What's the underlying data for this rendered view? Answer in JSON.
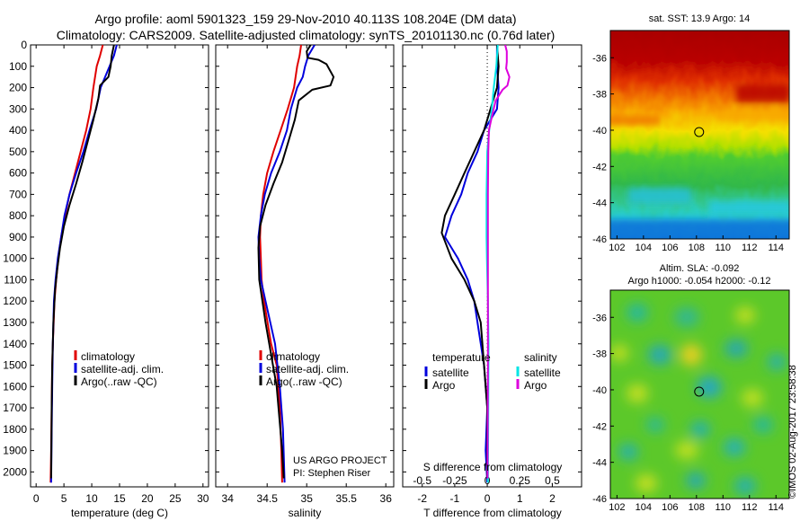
{
  "header": {
    "title_line1": "Argo profile: aoml 5901323_159 29-Nov-2010 40.113S 108.204E (DM data)",
    "title_line2": "Climatology: CARS2009. Satellite-adjusted climatology: synTS_20101130.nc (0.76d later)"
  },
  "credits": {
    "project": "US ARGO PROJECT",
    "pi": "PI: Stephen Riser"
  },
  "timestamp": "©IMOS 02-Aug-2017 23:58:38",
  "colors": {
    "climatology": "#e00000",
    "satellite": "#0000dd",
    "argo": "#000000",
    "sat_salinity": "#00e5e5",
    "argo_salinity": "#dd00dd"
  },
  "chart_data": [
    {
      "id": "temperature",
      "type": "line",
      "xlabel": "temperature (deg C)",
      "xlim": [
        -1,
        31
      ],
      "ylim": [
        2070,
        0
      ],
      "xticks": [
        0,
        5,
        10,
        15,
        20,
        25,
        30
      ],
      "xtick_labels": [
        "0",
        "5",
        "10",
        "15",
        "20",
        "25",
        "30"
      ],
      "yticks": [
        0,
        100,
        200,
        300,
        400,
        500,
        600,
        700,
        800,
        900,
        1000,
        1100,
        1200,
        1300,
        1400,
        1500,
        1600,
        1700,
        1800,
        1900,
        2000
      ],
      "ytick_labels": [
        "0",
        "100",
        "200",
        "300",
        "400",
        "500",
        "600",
        "700",
        "800",
        "900",
        "1000",
        "1100",
        "1200",
        "1300",
        "1400",
        "1500",
        "1600",
        "1700",
        "1800",
        "1900",
        "2000"
      ],
      "legend": {
        "position": "lower-center",
        "entries": [
          "climatology",
          "satellite-adj. clim.",
          "Argo(..raw -QC)"
        ]
      },
      "series": [
        {
          "name": "climatology",
          "color": "#e00000",
          "x": [
            12.0,
            11.5,
            10.9,
            10.3,
            9.8,
            9.0,
            8.0,
            7.0,
            6.0,
            5.2,
            4.5,
            4.0,
            3.6,
            3.3,
            3.0,
            2.9,
            2.8,
            2.7,
            2.6
          ],
          "y": [
            0,
            50,
            100,
            200,
            300,
            400,
            500,
            600,
            700,
            800,
            900,
            1000,
            1100,
            1200,
            1400,
            1500,
            1700,
            1900,
            2050
          ]
        },
        {
          "name": "satellite-adj. clim.",
          "color": "#0000dd",
          "x": [
            14.5,
            14.0,
            13.2,
            12.4,
            11.6,
            10.8,
            9.6,
            8.5,
            7.2,
            6.0,
            5.1,
            4.5,
            3.9,
            3.5,
            3.2,
            3.0,
            2.9,
            2.8,
            2.7
          ],
          "y": [
            0,
            50,
            100,
            150,
            200,
            300,
            400,
            500,
            600,
            700,
            800,
            900,
            1000,
            1100,
            1200,
            1400,
            1600,
            1800,
            2050
          ]
        },
        {
          "name": "Argo(..raw -QC)",
          "color": "#000000",
          "x": [
            14.0,
            13.6,
            13.4,
            13.0,
            11.5,
            11.2,
            10.3,
            9.3,
            8.3,
            7.2,
            6.0,
            5.0,
            4.3,
            3.8,
            3.4,
            3.1,
            2.9,
            2.8,
            2.7
          ],
          "y": [
            0,
            50,
            100,
            150,
            190,
            250,
            350,
            450,
            550,
            650,
            750,
            850,
            950,
            1050,
            1150,
            1300,
            1500,
            1700,
            2030
          ]
        }
      ]
    },
    {
      "id": "salinity",
      "type": "line",
      "xlabel": "salinity",
      "xlim": [
        33.85,
        36.1
      ],
      "ylim": [
        2070,
        0
      ],
      "xticks": [
        34,
        34.5,
        35,
        35.5,
        36
      ],
      "xtick_labels": [
        "34",
        "34.5",
        "35",
        "35.5",
        "36"
      ],
      "legend": {
        "position": "lower-center",
        "entries": [
          "climatology",
          "satellite-adj. clim.",
          "Argo(..raw -QC)"
        ]
      },
      "series": [
        {
          "name": "climatology",
          "color": "#e00000",
          "x": [
            34.93,
            34.91,
            34.88,
            34.84,
            34.76,
            34.67,
            34.58,
            34.5,
            34.45,
            34.42,
            34.41,
            34.42,
            34.43,
            34.46,
            34.55,
            34.62,
            34.66,
            34.68,
            34.69
          ],
          "y": [
            0,
            50,
            100,
            200,
            300,
            400,
            500,
            600,
            700,
            800,
            900,
            1000,
            1100,
            1200,
            1400,
            1500,
            1700,
            1900,
            2050
          ]
        },
        {
          "name": "satellite-adj. clim.",
          "color": "#0000dd",
          "x": [
            35.1,
            35.02,
            34.98,
            34.95,
            34.88,
            34.8,
            34.75,
            34.66,
            34.55,
            34.47,
            34.42,
            34.39,
            34.4,
            34.42,
            34.48,
            34.6,
            34.66,
            34.7,
            34.72
          ],
          "y": [
            0,
            50,
            100,
            150,
            200,
            300,
            400,
            500,
            600,
            700,
            800,
            900,
            1000,
            1100,
            1200,
            1400,
            1600,
            1800,
            2050
          ]
        },
        {
          "name": "Argo(..raw -QC)",
          "color": "#000000",
          "x": [
            35.05,
            35.0,
            35.01,
            35.15,
            35.25,
            35.34,
            35.3,
            35.07,
            34.9,
            34.85,
            34.77,
            34.69,
            34.58,
            34.48,
            34.41,
            34.39,
            34.4,
            34.48,
            34.62,
            34.69,
            34.71
          ],
          "y": [
            0,
            30,
            60,
            70,
            90,
            150,
            190,
            210,
            260,
            350,
            450,
            550,
            650,
            750,
            850,
            950,
            1100,
            1300,
            1600,
            1900,
            2030
          ]
        }
      ]
    },
    {
      "id": "difference",
      "type": "line",
      "xlabel": "T difference from climatology",
      "xlabel_top": "S difference from climatology",
      "xlim": [
        -2.6,
        2.9
      ],
      "ylim": [
        2070,
        0
      ],
      "xticks": [
        -2,
        -1,
        0,
        1,
        2
      ],
      "xtick_labels": [
        "-2",
        "-1",
        "0",
        "1",
        "2"
      ],
      "xticks_top": [
        -0.5,
        -0.25,
        0,
        0.25,
        0.5
      ],
      "xtick_labels_top": [
        "-0.5",
        "-0.25",
        "0",
        "0.25",
        "0.5"
      ],
      "legend": {
        "position": "lower-center",
        "temperature_title": "temperature",
        "salinity_title": "salinity",
        "temperature_entries": [
          "satellite",
          "Argo"
        ],
        "salinity_entries": [
          "satellite",
          "Argo"
        ]
      },
      "series": [
        {
          "name": "temperature satellite",
          "color": "#0000dd",
          "x": [
            0.3,
            0.3,
            0.35,
            0.3,
            0.1,
            -0.1,
            -0.3,
            -0.6,
            -0.8,
            -1.1,
            -1.3,
            -0.9,
            -0.6,
            -0.4,
            -0.3,
            -0.1,
            0.0,
            -0.05,
            0.0
          ],
          "y": [
            0,
            100,
            200,
            300,
            350,
            400,
            500,
            600,
            700,
            800,
            900,
            1000,
            1100,
            1200,
            1300,
            1500,
            1700,
            1900,
            2050
          ]
        },
        {
          "name": "temperature Argo",
          "color": "#000000",
          "x": [
            0.3,
            0.35,
            0.3,
            0.1,
            -0.1,
            -0.4,
            -0.7,
            -1.0,
            -1.3,
            -1.4,
            -1.1,
            -0.7,
            -0.4,
            -0.2,
            -0.1,
            0.0,
            0.0
          ],
          "y": [
            0,
            100,
            200,
            300,
            400,
            500,
            600,
            700,
            800,
            880,
            1000,
            1100,
            1200,
            1300,
            1500,
            1700,
            2030
          ]
        },
        {
          "name": "salinity satellite",
          "color": "#00e5e5",
          "x": [
            0.32,
            0.31,
            0.28,
            0.2,
            0.14,
            0.06,
            0.0,
            -0.01,
            -0.02,
            -0.02,
            -0.02,
            -0.01,
            0.02,
            0.04,
            0.03,
            0.02
          ],
          "y": [
            0,
            30,
            100,
            200,
            300,
            400,
            500,
            600,
            700,
            800,
            900,
            1000,
            1200,
            1400,
            1700,
            2050
          ]
        },
        {
          "name": "salinity Argo",
          "color": "#dd00dd",
          "x": [
            0.55,
            0.6,
            0.6,
            0.58,
            0.68,
            0.62,
            0.47,
            0.26,
            0.15,
            0.05,
            0.03,
            0.02,
            0.02,
            0.02,
            0.01
          ],
          "y": [
            0,
            30,
            80,
            110,
            150,
            190,
            210,
            260,
            330,
            400,
            500,
            700,
            900,
            1500,
            2030
          ]
        }
      ]
    },
    {
      "id": "sst_map",
      "type": "heatmap",
      "title": "sat. SST: 13.9 Argo: 14",
      "xlim": [
        101.5,
        115
      ],
      "ylim": [
        -46,
        -34.5
      ],
      "xticks": [
        102,
        104,
        106,
        108,
        110,
        112,
        114
      ],
      "xtick_labels": [
        "102",
        "104",
        "106",
        "108",
        "110",
        "112",
        "114"
      ],
      "yticks": [
        -36,
        -38,
        -40,
        -42,
        -44,
        -46
      ],
      "ytick_labels": [
        "-36",
        "-38",
        "-40",
        "-42",
        "-44",
        "-46"
      ],
      "marker": {
        "lon": 108.2,
        "lat": -40.1
      }
    },
    {
      "id": "sla_map",
      "type": "heatmap",
      "title_line1": "Altim. SLA: -0.092",
      "title_line2": "Argo h1000: -0.054 h2000: -0.12",
      "xlim": [
        101.5,
        115
      ],
      "ylim": [
        -46,
        -34.5
      ],
      "xticks": [
        102,
        104,
        106,
        108,
        110,
        112,
        114
      ],
      "xtick_labels": [
        "102",
        "104",
        "106",
        "108",
        "110",
        "112",
        "114"
      ],
      "yticks": [
        -36,
        -38,
        -40,
        -42,
        -44,
        -46
      ],
      "ytick_labels": [
        "-36",
        "-38",
        "-40",
        "-42",
        "-44",
        "-46"
      ],
      "marker": {
        "lon": 108.2,
        "lat": -40.1
      }
    }
  ]
}
